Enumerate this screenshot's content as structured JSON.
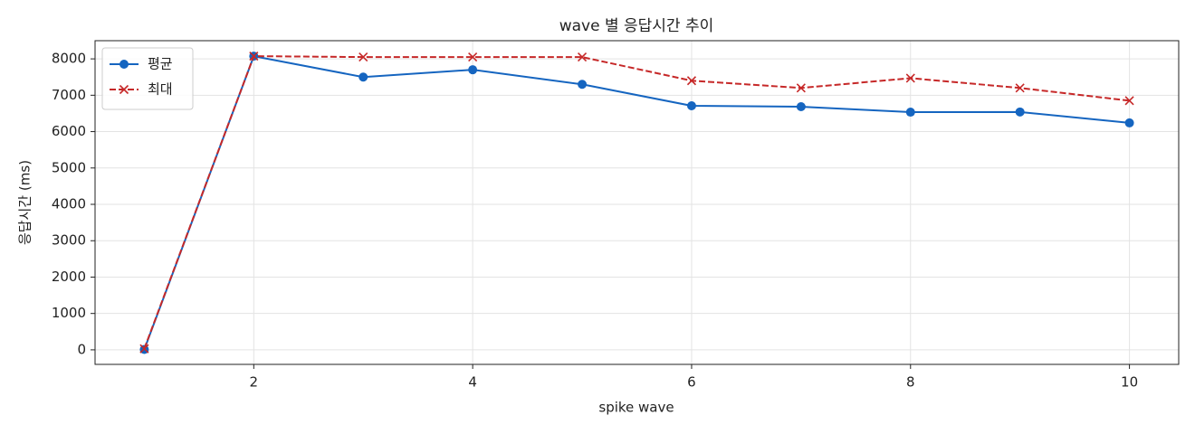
{
  "chart_data": {
    "type": "line",
    "title": "wave 별 응답시간 추이",
    "x_label": "spike wave",
    "y_label": "응답시간 (ms)",
    "x": [
      1,
      2,
      3,
      4,
      5,
      6,
      7,
      8,
      9,
      10
    ],
    "series": [
      {
        "name": "평균",
        "color": "#1565c0",
        "marker": "o",
        "linestyle": "solid",
        "values": [
          10,
          8075,
          7500,
          7700,
          7300,
          6710,
          6685,
          6535,
          6540,
          6240
        ]
      },
      {
        "name": "최대",
        "color": "#c62828",
        "marker": "x",
        "linestyle": "dashed",
        "values": [
          30,
          8075,
          8050,
          8050,
          8050,
          7400,
          7200,
          7470,
          7200,
          6850
        ]
      }
    ],
    "xlim": [
      0.55,
      10.45
    ],
    "ylim": [
      -400,
      8500
    ],
    "xticks": [
      2,
      4,
      6,
      8,
      10
    ],
    "yticks": [
      0,
      1000,
      2000,
      3000,
      4000,
      5000,
      6000,
      7000,
      8000
    ],
    "grid": true,
    "legend": "upper left"
  }
}
